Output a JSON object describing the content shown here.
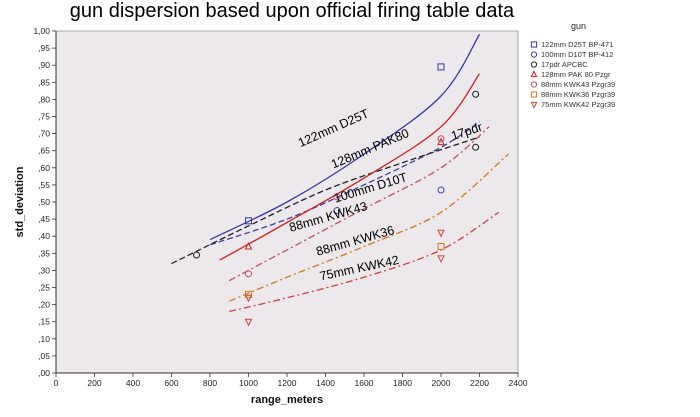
{
  "chart_data": {
    "type": "scatter",
    "title": "gun dispersion based upon official firing table data",
    "xlabel": "range_meters",
    "ylabel": "std_deviation",
    "xlim": [
      0,
      2400
    ],
    "ylim": [
      0.0,
      1.0
    ],
    "x_ticks": [
      "0",
      "200",
      "400",
      "600",
      "800",
      "1000",
      "1200",
      "1400",
      "1600",
      "1800",
      "2000",
      "2200",
      "2400"
    ],
    "y_ticks": [
      ",00",
      ",05",
      ",10",
      ",15",
      ",20",
      ",25",
      ",30",
      ",35",
      ",40",
      ",45",
      ",50",
      ",55",
      ",60",
      ",65",
      ",70",
      ",75",
      ",80",
      ",85",
      ",90",
      ",95",
      "1,00"
    ],
    "legend_title": "gun",
    "legend_position": "right",
    "series": [
      {
        "name": "122mm D25T BP-471",
        "color": "#3a3aa0",
        "marker": "square",
        "line": "solid",
        "points": [
          [
            1000,
            0.445
          ],
          [
            2000,
            0.895
          ]
        ],
        "fit": [
          [
            800,
            0.39
          ],
          [
            1200,
            0.5
          ],
          [
            1600,
            0.64
          ],
          [
            2000,
            0.81
          ],
          [
            2200,
            0.99
          ]
        ]
      },
      {
        "name": "100mm D10T BP-412",
        "color": "#4040a0",
        "marker": "circle",
        "line": "dashed",
        "points": [
          [
            1460,
            0.475
          ],
          [
            2000,
            0.535
          ]
        ],
        "fit": [
          [
            800,
            0.375
          ],
          [
            1200,
            0.45
          ],
          [
            1600,
            0.55
          ],
          [
            2000,
            0.66
          ],
          [
            2200,
            0.735
          ]
        ]
      },
      {
        "name": "17pdr APCBC",
        "color": "#222222",
        "marker": "circle",
        "line": "dashed",
        "points": [
          [
            730,
            0.345
          ],
          [
            2180,
            0.815
          ],
          [
            2180,
            0.66
          ]
        ],
        "fit": [
          [
            600,
            0.32
          ],
          [
            1000,
            0.43
          ],
          [
            1400,
            0.535
          ],
          [
            1800,
            0.615
          ],
          [
            2200,
            0.69
          ]
        ]
      },
      {
        "name": "128mm PAK 80 Pzgr",
        "color": "#d02020",
        "marker": "triangle",
        "line": "solid",
        "points": [
          [
            1000,
            0.37
          ],
          [
            2000,
            0.675
          ]
        ],
        "fit": [
          [
            850,
            0.33
          ],
          [
            1200,
            0.44
          ],
          [
            1600,
            0.57
          ],
          [
            2000,
            0.72
          ],
          [
            2200,
            0.875
          ]
        ]
      },
      {
        "name": "88mm KWK43 Pzgr39",
        "color": "#c05060",
        "marker": "circle",
        "line": "dashdot",
        "points": [
          [
            1000,
            0.29
          ],
          [
            1460,
            0.515
          ],
          [
            2000,
            0.685
          ]
        ],
        "fit": [
          [
            900,
            0.27
          ],
          [
            1200,
            0.36
          ],
          [
            1600,
            0.48
          ],
          [
            2000,
            0.6
          ],
          [
            2250,
            0.72
          ]
        ]
      },
      {
        "name": "88mm KWK36 Pzgr39",
        "color": "#d07818",
        "marker": "square",
        "line": "dashdot",
        "points": [
          [
            1000,
            0.23
          ],
          [
            2000,
            0.37
          ]
        ],
        "fit": [
          [
            900,
            0.21
          ],
          [
            1200,
            0.28
          ],
          [
            1600,
            0.37
          ],
          [
            2000,
            0.47
          ],
          [
            2350,
            0.64
          ]
        ]
      },
      {
        "name": "75mm KWK42 Pzgr39",
        "color": "#d04040",
        "marker": "triangle-down",
        "line": "dashdot",
        "points": [
          [
            1000,
            0.15
          ],
          [
            1000,
            0.22
          ],
          [
            2000,
            0.335
          ],
          [
            2000,
            0.41
          ]
        ],
        "fit": [
          [
            900,
            0.18
          ],
          [
            1200,
            0.22
          ],
          [
            1600,
            0.28
          ],
          [
            2000,
            0.36
          ],
          [
            2300,
            0.47
          ]
        ]
      }
    ],
    "annotations": [
      {
        "text": "122mm D25T",
        "x": 1450,
        "y": 0.705,
        "angle": -24
      },
      {
        "text": "128mm PAK80",
        "x": 1640,
        "y": 0.645,
        "angle": -23
      },
      {
        "text": "100mm D10T",
        "x": 1640,
        "y": 0.53,
        "angle": -17
      },
      {
        "text": "17pdr",
        "x": 2140,
        "y": 0.695,
        "angle": -18
      },
      {
        "text": "88mm KWK43",
        "x": 1420,
        "y": 0.445,
        "angle": -16
      },
      {
        "text": "88mm KWK36",
        "x": 1560,
        "y": 0.375,
        "angle": -16
      },
      {
        "text": "75mm KWK42",
        "x": 1580,
        "y": 0.295,
        "angle": -12
      }
    ]
  }
}
